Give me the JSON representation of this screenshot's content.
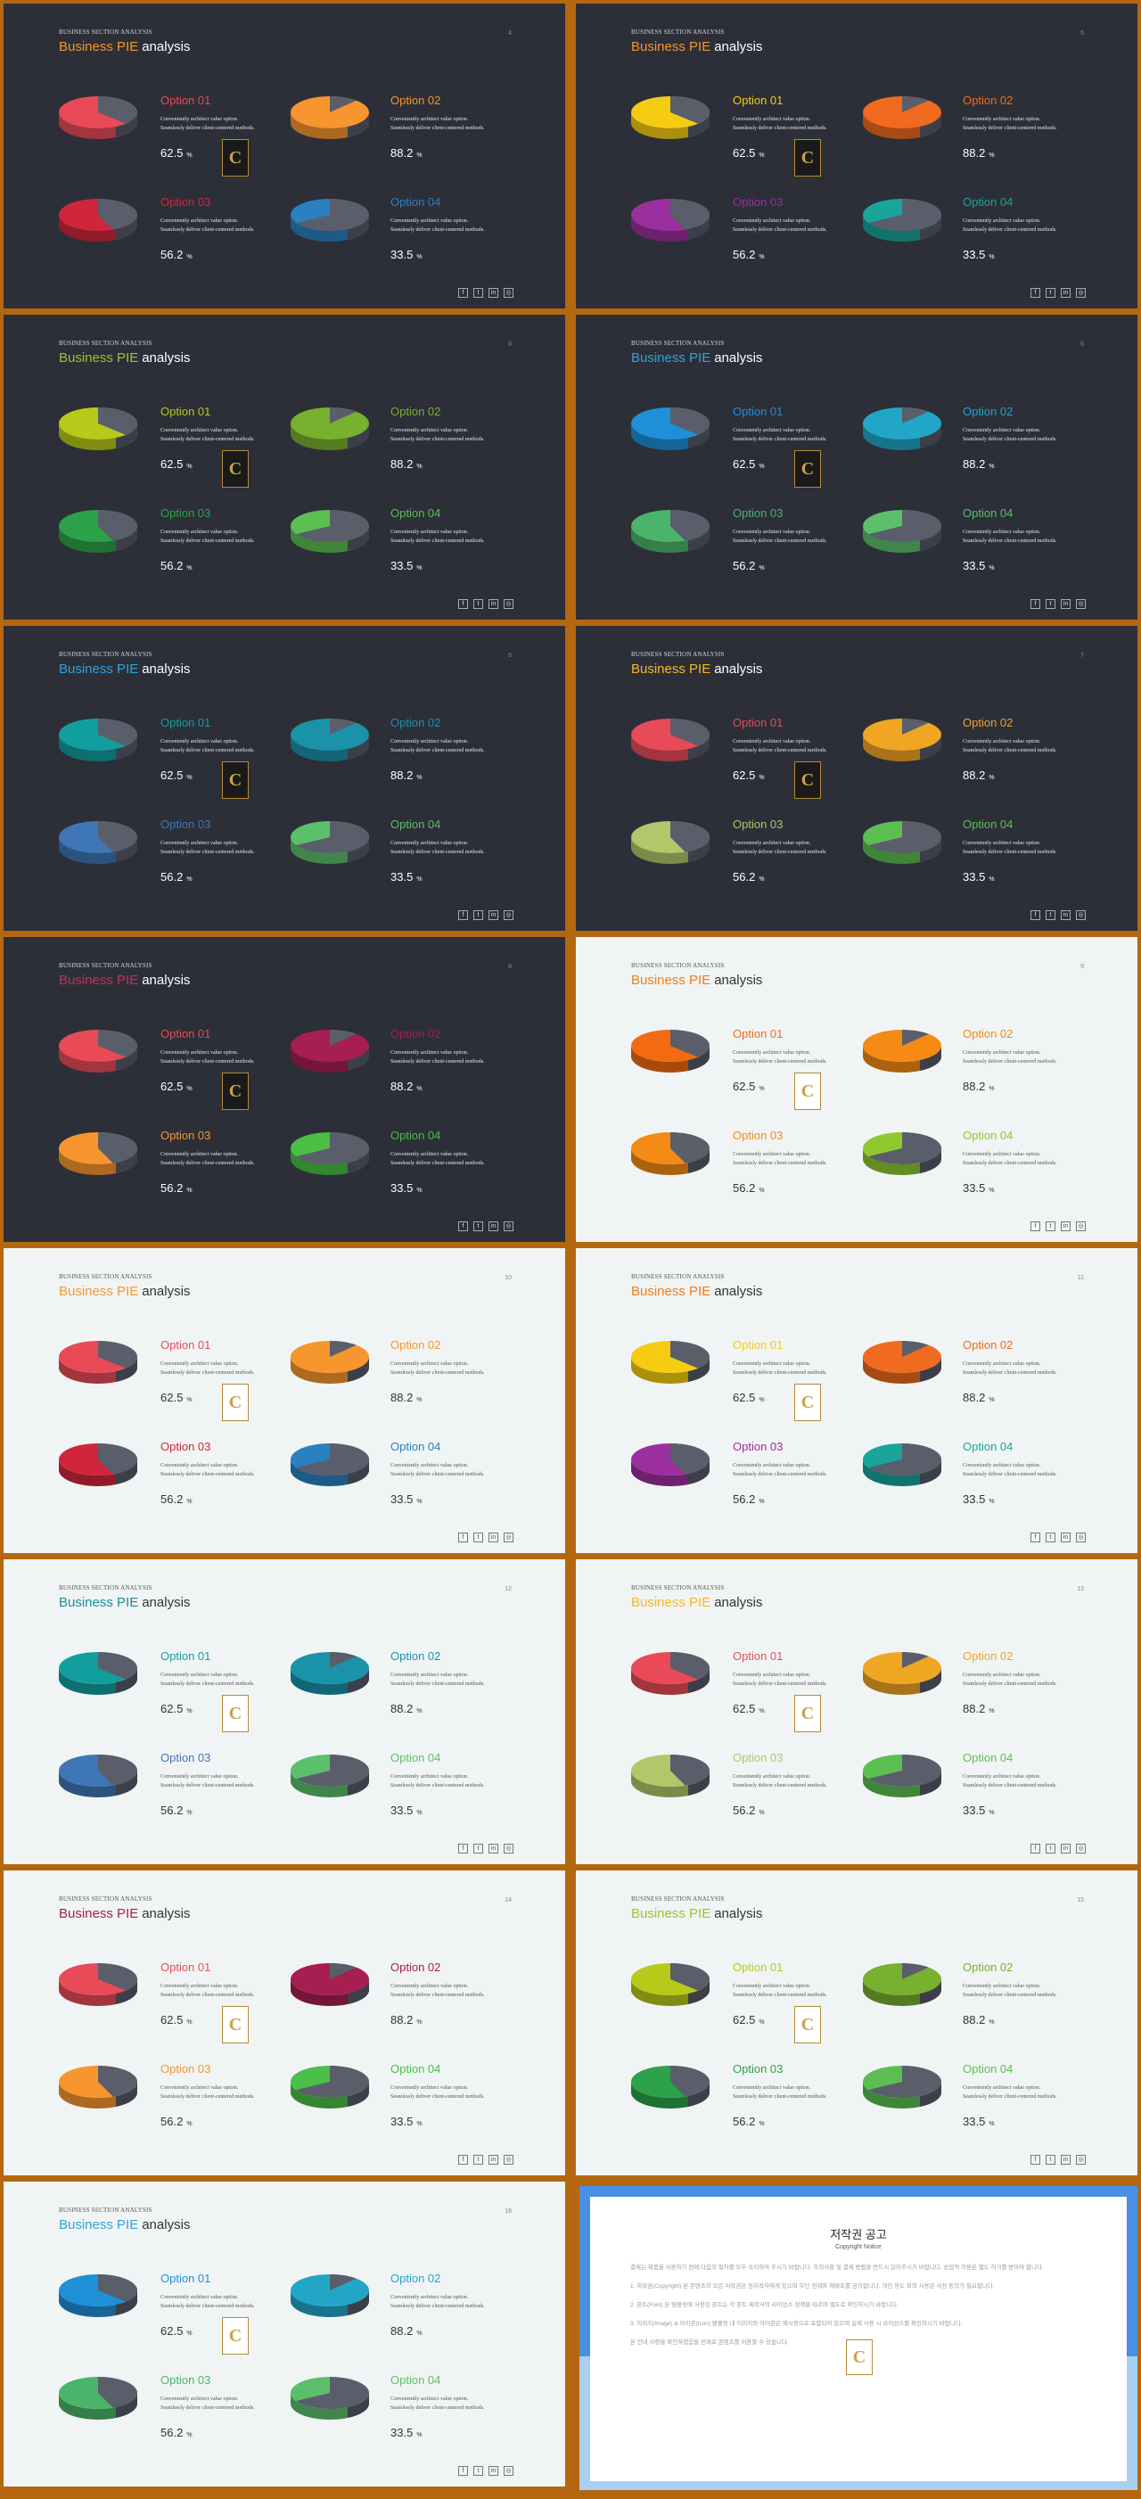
{
  "common": {
    "kicker": "BUSINESS SECTION ANALYSIS",
    "title_accent": "Business PIE",
    "title_plain": "analysis",
    "desc_line1": "Conveniently architect value option.",
    "desc_line2": "Seamlessly deliver client-centered methods.",
    "percent_sign": "%",
    "logo_letter": "C",
    "social_icons": [
      "facebook-icon",
      "twitter-icon",
      "linkedin-icon",
      "instagram-icon"
    ],
    "social_glyphs": [
      "f",
      "t",
      "in",
      "◎"
    ]
  },
  "options": [
    {
      "label": "Option 01",
      "value": "62.5",
      "pie": {
        "main": 62.5,
        "rest": 37.5
      }
    },
    {
      "label": "Option 02",
      "value": "88.2",
      "pie": {
        "main": 88.2,
        "rest": 11.8
      }
    },
    {
      "label": "Option 03",
      "value": "56.2",
      "pie": {
        "main": 56.2,
        "rest": 43.8
      }
    },
    {
      "label": "Option 04",
      "value": "33.5",
      "pie": {
        "main": 33.5,
        "rest": 66.5
      }
    }
  ],
  "slides": [
    {
      "theme": "dark",
      "page": "4",
      "title_color": "#f5962e",
      "colors": [
        "#e84b57",
        "#f7962e",
        "#d0263b",
        "#2a80c0"
      ]
    },
    {
      "theme": "dark",
      "page": "5",
      "title_color": "#f5962e",
      "colors": [
        "#f5cc12",
        "#f06a1f",
        "#9c2f9e",
        "#1aa59b"
      ]
    },
    {
      "theme": "dark",
      "page": "6",
      "title_color": "#9ac42d",
      "colors": [
        "#b8c919",
        "#78b02f",
        "#2ca24a",
        "#5cbf52"
      ]
    },
    {
      "theme": "dark",
      "page": "6",
      "title_color": "#2fa3dc",
      "colors": [
        "#1f8fd8",
        "#22a6c8",
        "#4ab56a",
        "#5cbf6b"
      ]
    },
    {
      "theme": "dark",
      "page": "6",
      "title_color": "#2fa3dc",
      "colors": [
        "#139e9e",
        "#1a92a8",
        "#3f76b5",
        "#5cbf6b"
      ]
    },
    {
      "theme": "dark",
      "page": "7",
      "title_color": "#f5b825",
      "colors": [
        "#e84b57",
        "#f0a523",
        "#b2c66a",
        "#5cbf52"
      ]
    },
    {
      "theme": "dark",
      "page": "8",
      "title_color": "#c0325a",
      "colors": [
        "#e84b57",
        "#a61f50",
        "#f7962e",
        "#4cbf46"
      ]
    },
    {
      "theme": "light",
      "page": "9",
      "title_color": "#f07d18",
      "colors": [
        "#f26a12",
        "#f58a14",
        "#f58a14",
        "#8ec82f"
      ]
    },
    {
      "theme": "light",
      "page": "10",
      "title_color": "#f5962e",
      "colors": [
        "#e84b57",
        "#f7962e",
        "#d0263b",
        "#2a80c0"
      ]
    },
    {
      "theme": "light",
      "page": "11",
      "title_color": "#f07d18",
      "colors": [
        "#f5cc12",
        "#f06a1f",
        "#9c2f9e",
        "#1aa59b"
      ]
    },
    {
      "theme": "light",
      "page": "12",
      "title_color": "#1a8f9a",
      "colors": [
        "#139e9e",
        "#1a92a8",
        "#3f76b5",
        "#5cbf6b"
      ]
    },
    {
      "theme": "light",
      "page": "13",
      "title_color": "#f5b825",
      "colors": [
        "#e84b57",
        "#f0a523",
        "#b2c66a",
        "#5cbf52"
      ]
    },
    {
      "theme": "light",
      "page": "14",
      "title_color": "#a61f50",
      "colors": [
        "#e84b57",
        "#a61f50",
        "#f7962e",
        "#4cbf46"
      ]
    },
    {
      "theme": "light",
      "page": "15",
      "title_color": "#9ac42d",
      "colors": [
        "#b8c919",
        "#78b02f",
        "#2ca24a",
        "#5cbf52"
      ]
    },
    {
      "theme": "light",
      "page": "16",
      "title_color": "#2fa3dc",
      "colors": [
        "#1f8fd8",
        "#22a6c8",
        "#4ab56a",
        "#5cbf6b"
      ]
    }
  ],
  "copyright": {
    "title": "저작권 공고",
    "subtitle": "Copyright Notice",
    "paragraphs": [
      "결제는 제품을 사용하기 전에 다음의 절차를 모두 숙지하여 주시기 바랍니다. 주의사항 및 결제 방법을 반드시 읽어주시기 바랍니다. 상업적 이용은 별도 허가를 받아야 합니다.",
      "1. 저작권(Copyright) 본 콘텐츠의 모든 저작권은 원저작자에게 있으며 무단 전재와 재배포를 금지합니다. 개인 용도 외의 사용은 사전 동의가 필요합니다.",
      "2. 폰트(Font) 본 템플릿에 사용된 폰트는 각 폰트 제작사의 라이선스 정책을 따르며 별도로 확인하시기 바랍니다.",
      "3. 이미지(Image) & 아이콘(Icon) 템플릿 내 이미지와 아이콘은 예시용으로 포함되어 있으며 실제 사용 시 라이선스를 확인하시기 바랍니다.",
      "본 안내 사항을 확인하였음을 전제로 콘텐츠를 이용할 수 있습니다."
    ]
  }
}
